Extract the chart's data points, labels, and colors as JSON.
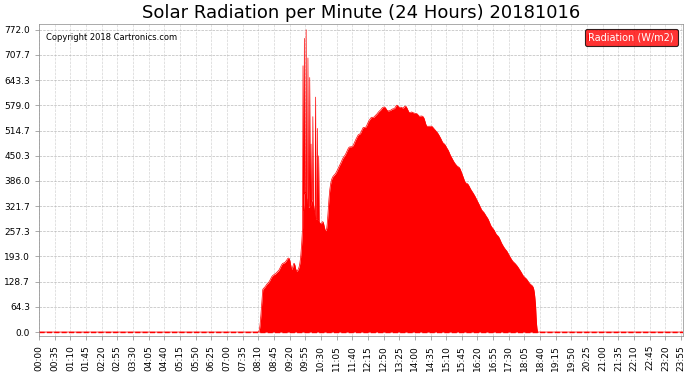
{
  "title": "Solar Radiation per Minute (24 Hours) 20181016",
  "copyright_text": "Copyright 2018 Cartronics.com",
  "legend_label": "Radiation (W/m2)",
  "background_color": "#ffffff",
  "plot_bg_color": "#ffffff",
  "fill_color": "#ff0000",
  "line_color": "#ff0000",
  "grid_color": "#aaaaaa",
  "axis_label_color": "#000000",
  "ytick_values": [
    0.0,
    64.3,
    128.7,
    193.0,
    257.3,
    321.7,
    386.0,
    450.3,
    514.7,
    579.0,
    643.3,
    707.7,
    772.0
  ],
  "ymax": 772.0,
  "total_minutes": 1440,
  "xtick_interval": 35,
  "title_fontsize": 13,
  "tick_fontsize": 6.5
}
